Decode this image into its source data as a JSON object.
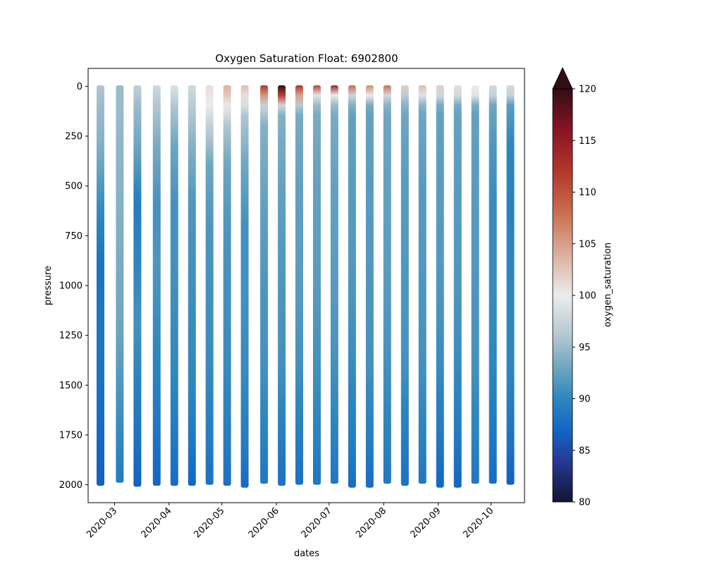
{
  "chart_data": {
    "type": "scatter",
    "title": "Oxygen Saturation Float: 6902800",
    "xlabel": "dates",
    "ylabel": "pressure",
    "y_inverted": true,
    "xlim": [
      "2020-02-15",
      "2020-10-20"
    ],
    "ylim": [
      2090,
      -90
    ],
    "x_ticks": [
      "2020-03-01",
      "2020-04-01",
      "2020-05-01",
      "2020-06-01",
      "2020-07-01",
      "2020-08-01",
      "2020-09-01",
      "2020-10-01"
    ],
    "x_tick_labels": [
      "2020-03",
      "2020-04",
      "2020-05",
      "2020-06",
      "2020-07",
      "2020-08",
      "2020-09",
      "2020-10"
    ],
    "y_ticks": [
      0,
      250,
      500,
      750,
      1000,
      1250,
      1500,
      1750,
      2000
    ],
    "y_tick_labels": [
      "0",
      "250",
      "500",
      "750",
      "1000",
      "1250",
      "1500",
      "1750",
      "2000"
    ],
    "colorbar": {
      "label": "oxygen_saturation",
      "range": [
        80,
        120
      ],
      "extend": "max",
      "ticks": [
        80,
        85,
        90,
        95,
        100,
        105,
        110,
        115,
        120
      ],
      "tick_labels": [
        "80",
        "85",
        "90",
        "95",
        "100",
        "105",
        "110",
        "115",
        "120"
      ],
      "colormap": [
        [
          80,
          "#141433"
        ],
        [
          84,
          "#243a95"
        ],
        [
          87,
          "#1466c4"
        ],
        [
          90,
          "#2f86bd"
        ],
        [
          93,
          "#6ea6c0"
        ],
        [
          96,
          "#b3c6d0"
        ],
        [
          100,
          "#ececec"
        ],
        [
          104,
          "#dcae9c"
        ],
        [
          108,
          "#c86e4f"
        ],
        [
          112,
          "#b3372a"
        ],
        [
          116,
          "#8a1325"
        ],
        [
          120,
          "#320d14"
        ]
      ]
    },
    "profiles": [
      {
        "date": "2020-02-22",
        "max_pressure": 2000,
        "profile": [
          [
            0,
            96
          ],
          [
            100,
            95
          ],
          [
            300,
            94
          ],
          [
            600,
            90.5
          ],
          [
            900,
            88
          ],
          [
            1200,
            88.5
          ],
          [
            1500,
            88
          ],
          [
            1800,
            87
          ],
          [
            2000,
            86.5
          ]
        ]
      },
      {
        "date": "2020-03-04",
        "max_pressure": 1985,
        "profile": [
          [
            0,
            95
          ],
          [
            100,
            95
          ],
          [
            300,
            94.5
          ],
          [
            600,
            94
          ],
          [
            900,
            93.5
          ],
          [
            1200,
            93
          ],
          [
            1500,
            91.5
          ],
          [
            1800,
            90
          ],
          [
            1985,
            89
          ]
        ]
      },
      {
        "date": "2020-03-14",
        "max_pressure": 2005,
        "profile": [
          [
            0,
            97
          ],
          [
            100,
            95
          ],
          [
            300,
            93
          ],
          [
            600,
            89
          ],
          [
            900,
            90
          ],
          [
            1200,
            91
          ],
          [
            1500,
            89.5
          ],
          [
            1800,
            88
          ],
          [
            2005,
            86.5
          ]
        ]
      },
      {
        "date": "2020-03-25",
        "max_pressure": 2000,
        "profile": [
          [
            0,
            98
          ],
          [
            100,
            96
          ],
          [
            300,
            93.5
          ],
          [
            600,
            91
          ],
          [
            900,
            91.5
          ],
          [
            1200,
            90.5
          ],
          [
            1500,
            89.5
          ],
          [
            1800,
            88
          ],
          [
            2000,
            87
          ]
        ]
      },
      {
        "date": "2020-04-04",
        "max_pressure": 2000,
        "profile": [
          [
            0,
            99
          ],
          [
            100,
            96
          ],
          [
            300,
            93
          ],
          [
            600,
            91
          ],
          [
            900,
            91
          ],
          [
            1200,
            90.5
          ],
          [
            1500,
            90
          ],
          [
            1800,
            88.5
          ],
          [
            2000,
            87.5
          ]
        ]
      },
      {
        "date": "2020-04-14",
        "max_pressure": 2000,
        "profile": [
          [
            0,
            98
          ],
          [
            100,
            96.5
          ],
          [
            300,
            94
          ],
          [
            600,
            91.5
          ],
          [
            900,
            91
          ],
          [
            1200,
            90.5
          ],
          [
            1500,
            90
          ],
          [
            1800,
            88.5
          ],
          [
            2000,
            87
          ]
        ]
      },
      {
        "date": "2020-04-24",
        "max_pressure": 1995,
        "profile": [
          [
            0,
            101
          ],
          [
            100,
            100
          ],
          [
            200,
            97
          ],
          [
            400,
            93
          ],
          [
            700,
            91.5
          ],
          [
            1000,
            91
          ],
          [
            1400,
            90.5
          ],
          [
            1800,
            89
          ],
          [
            1995,
            88
          ]
        ]
      },
      {
        "date": "2020-05-04",
        "max_pressure": 2000,
        "profile": [
          [
            0,
            104
          ],
          [
            60,
            102
          ],
          [
            200,
            96
          ],
          [
            400,
            93
          ],
          [
            700,
            91.5
          ],
          [
            1000,
            91
          ],
          [
            1400,
            90.5
          ],
          [
            1800,
            89
          ],
          [
            2000,
            88
          ]
        ]
      },
      {
        "date": "2020-05-14",
        "max_pressure": 2010,
        "profile": [
          [
            0,
            103
          ],
          [
            50,
            101
          ],
          [
            150,
            96
          ],
          [
            400,
            93
          ],
          [
            700,
            91
          ],
          [
            1000,
            91
          ],
          [
            1400,
            90.5
          ],
          [
            1800,
            89
          ],
          [
            2010,
            87.5
          ]
        ]
      },
      {
        "date": "2020-05-25",
        "max_pressure": 1990,
        "profile": [
          [
            0,
            112
          ],
          [
            40,
            108
          ],
          [
            80,
            98
          ],
          [
            200,
            94
          ],
          [
            600,
            92.5
          ],
          [
            1000,
            91.5
          ],
          [
            1400,
            91
          ],
          [
            1800,
            89.5
          ],
          [
            1990,
            88.5
          ]
        ]
      },
      {
        "date": "2020-06-04",
        "max_pressure": 2000,
        "profile": [
          [
            0,
            120
          ],
          [
            40,
            116
          ],
          [
            75,
            100
          ],
          [
            150,
            94
          ],
          [
            500,
            92.5
          ],
          [
            1000,
            91.5
          ],
          [
            1400,
            91
          ],
          [
            1800,
            89
          ],
          [
            2000,
            88
          ]
        ]
      },
      {
        "date": "2020-06-14",
        "max_pressure": 1995,
        "profile": [
          [
            0,
            112
          ],
          [
            40,
            108
          ],
          [
            70,
            98
          ],
          [
            150,
            93.5
          ],
          [
            500,
            92.5
          ],
          [
            1000,
            92
          ],
          [
            1400,
            91
          ],
          [
            1800,
            89
          ],
          [
            1995,
            88
          ]
        ]
      },
      {
        "date": "2020-06-24",
        "max_pressure": 1995,
        "profile": [
          [
            0,
            111
          ],
          [
            30,
            106
          ],
          [
            60,
            96
          ],
          [
            150,
            93.5
          ],
          [
            500,
            92.5
          ],
          [
            1000,
            92
          ],
          [
            1400,
            91
          ],
          [
            1800,
            89.5
          ],
          [
            1995,
            88.5
          ]
        ]
      },
      {
        "date": "2020-07-04",
        "max_pressure": 1990,
        "profile": [
          [
            0,
            114
          ],
          [
            30,
            108
          ],
          [
            60,
            96
          ],
          [
            150,
            93.5
          ],
          [
            500,
            92.5
          ],
          [
            1000,
            92
          ],
          [
            1400,
            91
          ],
          [
            1800,
            89.5
          ],
          [
            1990,
            88.5
          ]
        ]
      },
      {
        "date": "2020-07-14",
        "max_pressure": 2010,
        "profile": [
          [
            0,
            108
          ],
          [
            30,
            103
          ],
          [
            60,
            95
          ],
          [
            150,
            92.5
          ],
          [
            500,
            92
          ],
          [
            1000,
            91.5
          ],
          [
            1400,
            90.5
          ],
          [
            1800,
            89
          ],
          [
            2010,
            87.5
          ]
        ]
      },
      {
        "date": "2020-07-24",
        "max_pressure": 2010,
        "profile": [
          [
            0,
            106
          ],
          [
            40,
            103
          ],
          [
            70,
            94
          ],
          [
            150,
            92.5
          ],
          [
            500,
            92
          ],
          [
            1000,
            91.5
          ],
          [
            1400,
            91
          ],
          [
            1800,
            89
          ],
          [
            2010,
            87.5
          ]
        ]
      },
      {
        "date": "2020-08-03",
        "max_pressure": 1990,
        "profile": [
          [
            0,
            108
          ],
          [
            30,
            104
          ],
          [
            60,
            95
          ],
          [
            150,
            93
          ],
          [
            500,
            92.5
          ],
          [
            1000,
            92
          ],
          [
            1400,
            91
          ],
          [
            1800,
            89.5
          ],
          [
            1990,
            88.5
          ]
        ]
      },
      {
        "date": "2020-08-13",
        "max_pressure": 2000,
        "profile": [
          [
            0,
            102
          ],
          [
            30,
            100
          ],
          [
            60,
            95
          ],
          [
            150,
            93
          ],
          [
            500,
            92
          ],
          [
            1000,
            91.5
          ],
          [
            1400,
            91
          ],
          [
            1800,
            89
          ],
          [
            2000,
            88
          ]
        ]
      },
      {
        "date": "2020-08-23",
        "max_pressure": 1990,
        "profile": [
          [
            0,
            103
          ],
          [
            40,
            101
          ],
          [
            70,
            95
          ],
          [
            150,
            93
          ],
          [
            500,
            92
          ],
          [
            1000,
            91.5
          ],
          [
            1400,
            91
          ],
          [
            1800,
            89.5
          ],
          [
            1990,
            88.5
          ]
        ]
      },
      {
        "date": "2020-09-02",
        "max_pressure": 2010,
        "profile": [
          [
            0,
            102
          ],
          [
            40,
            100
          ],
          [
            70,
            94
          ],
          [
            150,
            92.5
          ],
          [
            500,
            92
          ],
          [
            1000,
            91.5
          ],
          [
            1400,
            90.5
          ],
          [
            1800,
            88.5
          ],
          [
            2010,
            87
          ]
        ]
      },
      {
        "date": "2020-09-12",
        "max_pressure": 2010,
        "profile": [
          [
            0,
            101
          ],
          [
            40,
            100
          ],
          [
            70,
            94
          ],
          [
            150,
            92.5
          ],
          [
            500,
            92
          ],
          [
            1000,
            91.5
          ],
          [
            1400,
            90.5
          ],
          [
            1800,
            88.5
          ],
          [
            2010,
            87
          ]
        ]
      },
      {
        "date": "2020-09-22",
        "max_pressure": 1990,
        "profile": [
          [
            0,
            100
          ],
          [
            50,
            99
          ],
          [
            80,
            94
          ],
          [
            150,
            92.5
          ],
          [
            500,
            92
          ],
          [
            1000,
            91.5
          ],
          [
            1400,
            91
          ],
          [
            1800,
            89.5
          ],
          [
            1990,
            88.5
          ]
        ]
      },
      {
        "date": "2020-10-02",
        "max_pressure": 1990,
        "profile": [
          [
            0,
            98
          ],
          [
            60,
            97
          ],
          [
            100,
            93
          ],
          [
            300,
            91.5
          ],
          [
            600,
            90.5
          ],
          [
            1000,
            90.5
          ],
          [
            1400,
            90
          ],
          [
            1800,
            88.5
          ],
          [
            1990,
            87.5
          ]
        ]
      },
      {
        "date": "2020-10-12",
        "max_pressure": 1995,
        "profile": [
          [
            0,
            98
          ],
          [
            80,
            97
          ],
          [
            100,
            92
          ],
          [
            300,
            90
          ],
          [
            600,
            89.5
          ],
          [
            1000,
            90
          ],
          [
            1400,
            90
          ],
          [
            1800,
            88
          ],
          [
            1995,
            86.5
          ]
        ]
      }
    ]
  }
}
